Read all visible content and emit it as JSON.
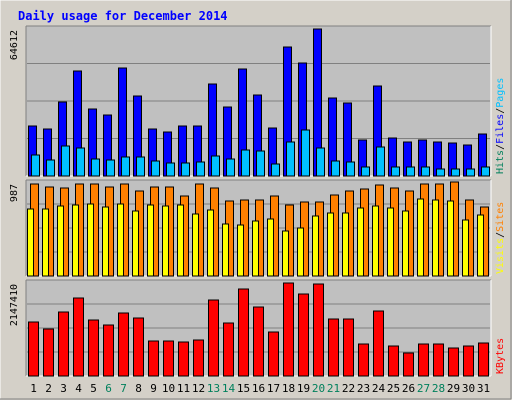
{
  "chart_data": {
    "type": "bar",
    "title": "Daily usage for December 2014",
    "colors": {
      "title": "#0000ff",
      "hits": "#00805c",
      "files": "#0000ff",
      "pages": "#00c0ff",
      "visits": "#ffff00",
      "sites": "#ff8000",
      "kbytes": "#ff0000",
      "weekend_day": "#00805c",
      "weekday_day": "#000000",
      "panel": "#c0c0c0",
      "frame": "#d4d0c8",
      "rule": "#808080"
    },
    "days": [
      "1",
      "2",
      "3",
      "4",
      "5",
      "6",
      "7",
      "8",
      "9",
      "10",
      "11",
      "12",
      "13",
      "14",
      "15",
      "16",
      "17",
      "18",
      "19",
      "20",
      "21",
      "22",
      "23",
      "24",
      "25",
      "26",
      "27",
      "28",
      "29",
      "30",
      "31"
    ],
    "weekend_days": [
      "6",
      "7",
      "13",
      "14",
      "20",
      "21",
      "27",
      "28"
    ],
    "panels": [
      {
        "id": "hits-files-pages",
        "ymax_label": "64612",
        "ymax": 64612,
        "legend": [
          {
            "text": "Hits",
            "color": "#00805c"
          },
          {
            "text": "/",
            "color": "#000000"
          },
          {
            "text": "Files",
            "color": "#0000ff"
          },
          {
            "text": "/",
            "color": "#000000"
          },
          {
            "text": "Pages",
            "color": "#00c0ff"
          }
        ],
        "series": [
          {
            "name": "Hits",
            "color": "#00805c",
            "values": [
              22300,
              21000,
              32700,
              46400,
              29800,
              27000,
              47800,
              35600,
              21000,
              19500,
              22100,
              22300,
              40800,
              30500,
              47400,
              36000,
              21100,
              57300,
              49900,
              65000,
              34700,
              32500,
              16000,
              40000,
              16800,
              15100,
              16100,
              15100,
              14400,
              13700,
              18400
            ]
          },
          {
            "name": "Files",
            "color": "#0000ff",
            "values": [
              22300,
              21000,
              32700,
              46400,
              29800,
              27000,
              47800,
              35600,
              21000,
              19500,
              22100,
              22300,
              40800,
              30500,
              47400,
              36000,
              21100,
              57300,
              49900,
              65000,
              34700,
              32500,
              16000,
              40000,
              16800,
              15100,
              16100,
              15100,
              14400,
              13700,
              18400
            ]
          },
          {
            "name": "Pages",
            "color": "#00c0ff",
            "values": [
              9200,
              7200,
              13400,
              12400,
              7600,
              7300,
              8300,
              8400,
              6800,
              5800,
              5800,
              6200,
              8900,
              7400,
              11400,
              11200,
              5400,
              15000,
              20200,
              12600,
              6500,
              6400,
              3900,
              12900,
              4100,
              3900,
              3800,
              3300,
              3300,
              3300,
              3800
            ]
          }
        ]
      },
      {
        "id": "visits-sites",
        "ymax_label": "987",
        "ymax": 987,
        "legend": [
          {
            "text": "Visits",
            "color": "#ffff00"
          },
          {
            "text": "/",
            "color": "#000000"
          },
          {
            "text": "Sites",
            "color": "#ff8000"
          }
        ],
        "series": [
          {
            "name": "Sites",
            "color": "#ff8000",
            "values": [
              990,
              955,
              945,
              990,
              990,
              955,
              990,
              910,
              955,
              960,
              860,
              990,
              940,
              800,
              810,
              820,
              860,
              765,
              790,
              790,
              870,
              910,
              935,
              975,
              945,
              915,
              990,
              990,
              1005,
              820,
              745
            ]
          },
          {
            "name": "Visits",
            "color": "#ffff00",
            "values": [
              720,
              720,
              750,
              760,
              770,
              740,
              770,
              700,
              760,
              750,
              760,
              670,
              710,
              560,
              550,
              590,
              610,
              480,
              510,
              640,
              680,
              680,
              730,
              750,
              730,
              700,
              830,
              820,
              800,
              600,
              650
            ]
          }
        ]
      },
      {
        "id": "kbytes",
        "ymax_label": "2147410",
        "ymax": 2147410,
        "legend": [
          {
            "text": "KBytes",
            "color": "#ff0000"
          }
        ],
        "series": [
          {
            "name": "KBytes",
            "color": "#ff0000",
            "values": [
              1250000,
              1090000,
              1490000,
              1830000,
              1300000,
              1200000,
              1480000,
              1360000,
              820000,
              820000,
              790000,
              850000,
              1770000,
              1230000,
              2020000,
              1610000,
              1020000,
              2170000,
              1910000,
              2150000,
              1330000,
              1320000,
              740000,
              1520000,
              690000,
              540000,
              740000,
              740000,
              650000,
              700000,
              770000
            ]
          }
        ]
      }
    ]
  }
}
